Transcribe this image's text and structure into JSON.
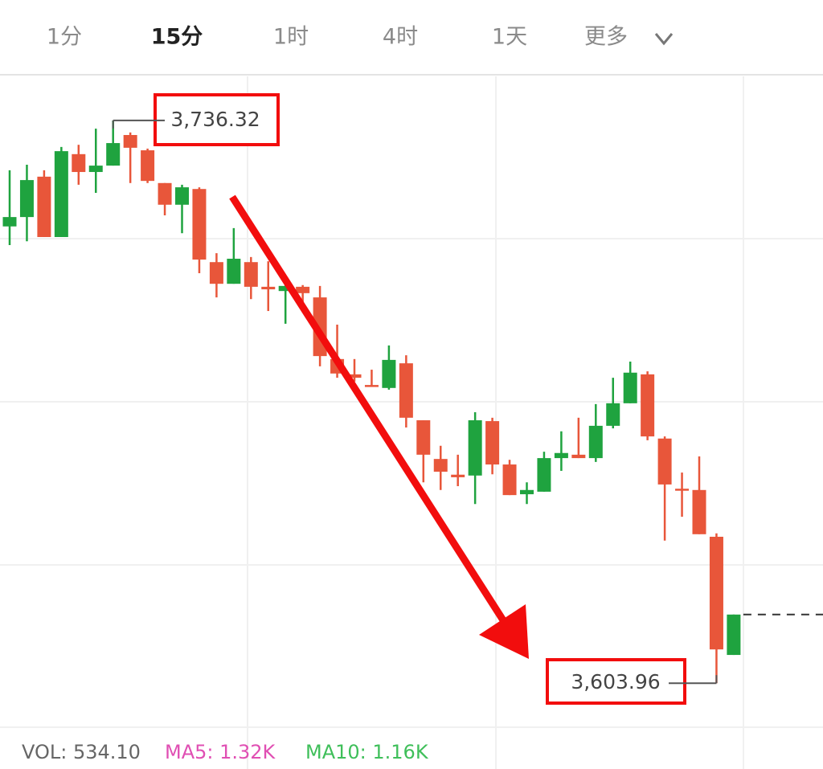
{
  "tabs": {
    "items": [
      "1分",
      "15分",
      "1时",
      "4时",
      "1天",
      "更多"
    ],
    "selected": 1
  },
  "chart_data": {
    "type": "candlestick",
    "up_color": "#1fa33f",
    "down_color": "#e8563a",
    "ylim": [
      3593.6,
      3746.7
    ],
    "open": [
      3711.4,
      3713.6,
      3723.1,
      3708.9,
      3728.4,
      3724.2,
      3725.7,
      3732.9,
      3729.3,
      3721.6,
      3716.5,
      3720.2,
      3703.0,
      3697.9,
      3703.0,
      3697.2,
      3696.2,
      3697.2,
      3694.7,
      3680.2,
      3676.6,
      3674.1,
      3673.4,
      3679.2,
      3665.8,
      3656.7,
      3653.0,
      3652.8,
      3665.6,
      3655.4,
      3648.4,
      3649.0,
      3656.9,
      3657.7,
      3656.9,
      3664.5,
      3669.8,
      3676.6,
      3661.5,
      3649.7,
      3649.4,
      3638.4,
      3610.6
    ],
    "high": [
      3724.6,
      3725.9,
      3724.6,
      3730.1,
      3730.6,
      3734.4,
      3736.32,
      3733.5,
      3729.7,
      3721.6,
      3721.2,
      3720.6,
      3705.1,
      3711.0,
      3704.2,
      3703.2,
      3697.6,
      3697.6,
      3697.4,
      3688.3,
      3680.2,
      3677.7,
      3683.4,
      3681.1,
      3665.8,
      3659.8,
      3657.7,
      3667.7,
      3666.4,
      3656.5,
      3651.2,
      3658.4,
      3663.2,
      3666.4,
      3669.6,
      3675.8,
      3679.6,
      3677.3,
      3662.0,
      3653.5,
      3657.3,
      3639.2,
      3620.1
    ],
    "low": [
      3707.0,
      3707.9,
      3708.9,
      3708.9,
      3721.2,
      3719.3,
      3725.7,
      3721.6,
      3721.6,
      3714.0,
      3709.8,
      3700.4,
      3694.7,
      3697.9,
      3694.3,
      3691.5,
      3688.5,
      3691.9,
      3678.5,
      3675.8,
      3674.9,
      3673.7,
      3673.0,
      3664.1,
      3651.2,
      3649.4,
      3650.3,
      3646.1,
      3653.1,
      3648.2,
      3646.1,
      3649.0,
      3653.9,
      3656.9,
      3656.0,
      3663.9,
      3669.8,
      3661.1,
      3637.5,
      3643.1,
      3639.0,
      3603.96,
      3610.6
    ],
    "close": [
      3713.6,
      3722.3,
      3708.9,
      3729.1,
      3724.2,
      3725.7,
      3731.0,
      3729.9,
      3722.1,
      3716.5,
      3720.6,
      3703.6,
      3697.9,
      3703.8,
      3697.2,
      3696.6,
      3697.4,
      3695.7,
      3680.9,
      3676.8,
      3675.8,
      3673.7,
      3680.0,
      3666.4,
      3657.7,
      3653.7,
      3652.4,
      3665.8,
      3655.4,
      3648.2,
      3649.4,
      3656.9,
      3658.1,
      3656.9,
      3664.5,
      3669.8,
      3677.0,
      3662.0,
      3650.7,
      3649.4,
      3639.0,
      3611.9,
      3620.1
    ],
    "annotations": [
      {
        "value": 3736.32,
        "label": "3,736.32"
      },
      {
        "value": 3603.96,
        "label": "3,603.96"
      }
    ],
    "indicators": [
      {
        "text": "VOL: 534.10",
        "color": "#666666"
      },
      {
        "text": "MA5: 1.32K",
        "color": "#e04fb3"
      },
      {
        "text": "MA10: 1.16K",
        "color": "#3fbf5a"
      }
    ]
  }
}
